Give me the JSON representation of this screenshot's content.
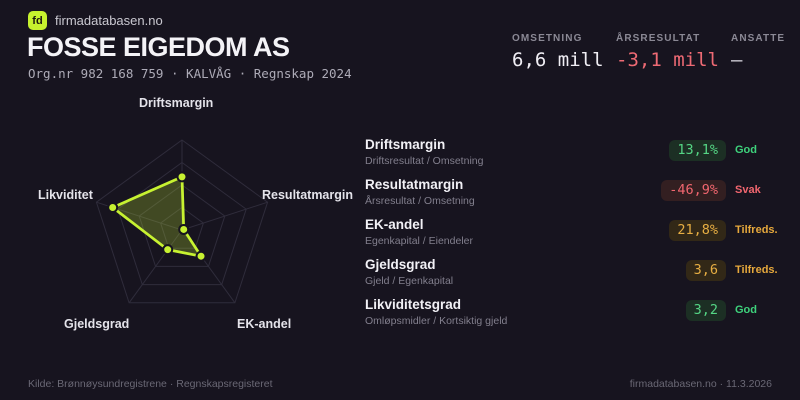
{
  "brand": {
    "logo_text": "fd",
    "site": "firmadatabasen.no",
    "accent_color": "#c6f22e"
  },
  "header": {
    "company": "FOSSE EIGEDOM AS",
    "meta": "Org.nr 982 168 759 · KALVÅG · Regnskap 2024",
    "stats": [
      {
        "label": "OMSETNING",
        "value": "6,6 mill",
        "color": "#f0eef4"
      },
      {
        "label": "ÅRSRESULTAT",
        "value": "-3,1 mill",
        "color": "#ee6a74"
      },
      {
        "label": "ANSATTE",
        "value": "–",
        "color": "#d8d6de"
      }
    ]
  },
  "chart_data": {
    "type": "radar",
    "axes": [
      "Driftsmargin",
      "Resultatmargin",
      "EK-andel",
      "Gjeldsgrad",
      "Likviditet"
    ],
    "values_normalized": [
      0.59,
      0.02,
      0.36,
      0.27,
      0.81
    ],
    "metric_values": [
      "13,1%",
      "-46,9%",
      "21,8%",
      "3,6",
      "3,2"
    ],
    "levels": 4,
    "grid_color": "#2f2c3b",
    "stroke_color": "#c7f231",
    "fill_color": "rgba(199,242,49,0.24)",
    "dot_outline_color": "#17141f",
    "legend_position": "none",
    "title": ""
  },
  "metrics": [
    {
      "title": "Driftsmargin",
      "formula": "Driftsresultat / Omsetning",
      "value": "13,1%",
      "status": "God",
      "tone": "good"
    },
    {
      "title": "Resultatmargin",
      "formula": "Årsresultat / Omsetning",
      "value": "-46,9%",
      "status": "Svak",
      "tone": "bad"
    },
    {
      "title": "EK-andel",
      "formula": "Egenkapital / Eiendeler",
      "value": "21,8%",
      "status": "Tilfreds.",
      "tone": "mid"
    },
    {
      "title": "Gjeldsgrad",
      "formula": "Gjeld / Egenkapital",
      "value": "3,6",
      "status": "Tilfreds.",
      "tone": "mid"
    },
    {
      "title": "Likviditetsgrad",
      "formula": "Omløpsmidler / Kortsiktig gjeld",
      "value": "3,2",
      "status": "God",
      "tone": "good"
    }
  ],
  "footer": {
    "source": "Kilde: Brønnøysundregistrene · Regnskapsregisteret",
    "attribution": "firmadatabasen.no · 11.3.2026"
  }
}
